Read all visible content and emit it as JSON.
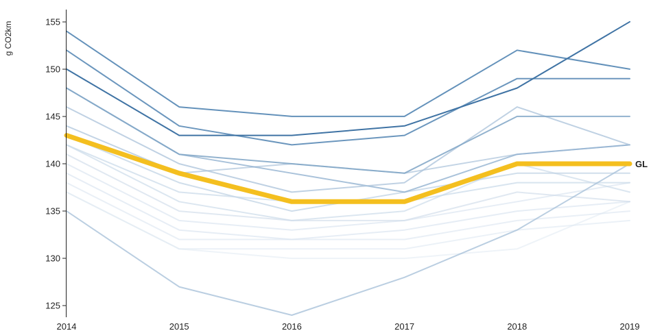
{
  "chart_data": {
    "type": "line",
    "title": "",
    "xlabel": "",
    "ylabel": "g CO2km",
    "x": [
      "2014",
      "2015",
      "2016",
      "2017",
      "2018",
      "2019"
    ],
    "ylim": [
      124,
      156
    ],
    "yticks": [
      125,
      130,
      135,
      140,
      145,
      150,
      155
    ],
    "grid": false,
    "legend": "none",
    "highlight_color": "#f4bf1f",
    "series": [
      {
        "values": [
          154,
          146,
          145,
          145,
          152,
          150
        ],
        "color": "#5b8bb6",
        "opacity": 0.95
      },
      {
        "values": [
          152,
          144,
          142,
          143,
          149,
          149
        ],
        "color": "#5b8bb6",
        "opacity": 0.9
      },
      {
        "values": [
          150,
          143,
          143,
          144,
          148,
          155
        ],
        "color": "#3f73a4",
        "opacity": 1.0
      },
      {
        "values": [
          148,
          141,
          140,
          139,
          145,
          145
        ],
        "color": "#7fa4c6",
        "opacity": 0.85
      },
      {
        "values": [
          148,
          141,
          139,
          137,
          141,
          142
        ],
        "color": "#8caecd",
        "opacity": 0.75
      },
      {
        "values": [
          146,
          140,
          137,
          138,
          146,
          142
        ],
        "color": "#a9c2da",
        "opacity": 0.75
      },
      {
        "values": [
          144,
          139,
          140,
          139,
          141,
          142
        ],
        "color": "#a9c2da",
        "opacity": 0.7
      },
      {
        "values": [
          143,
          138,
          135,
          137,
          139,
          139
        ],
        "color": "#bcd0e3",
        "opacity": 0.7
      },
      {
        "values": [
          142,
          137,
          136,
          136,
          138,
          138
        ],
        "color": "#c8d8e8",
        "opacity": 0.7
      },
      {
        "values": [
          142,
          136,
          134,
          135,
          140,
          137
        ],
        "color": "#c8d8e8",
        "opacity": 0.65
      },
      {
        "values": [
          141,
          135,
          134,
          134,
          137,
          136
        ],
        "color": "#cfdcea",
        "opacity": 0.65
      },
      {
        "values": [
          140,
          134,
          133,
          134,
          136,
          138
        ],
        "color": "#d5e1ee",
        "opacity": 0.6
      },
      {
        "values": [
          139,
          133,
          132,
          133,
          135,
          136
        ],
        "color": "#d5e1ee",
        "opacity": 0.6
      },
      {
        "values": [
          138,
          132,
          132,
          132,
          134,
          135
        ],
        "color": "#dbe5f0",
        "opacity": 0.6
      },
      {
        "values": [
          137,
          131,
          131,
          131,
          133,
          134
        ],
        "color": "#dbe5f0",
        "opacity": 0.55
      },
      {
        "values": [
          137,
          131,
          130,
          130,
          131,
          136
        ],
        "color": "#e0e9f3",
        "opacity": 0.55
      },
      {
        "values": [
          135,
          127,
          124,
          128,
          133,
          140
        ],
        "color": "#a9c2da",
        "opacity": 0.8
      },
      {
        "name": "GL",
        "values": [
          143,
          139,
          136,
          136,
          140,
          140
        ],
        "color": "#f4bf1f",
        "opacity": 1.0,
        "highlight": true
      }
    ]
  }
}
